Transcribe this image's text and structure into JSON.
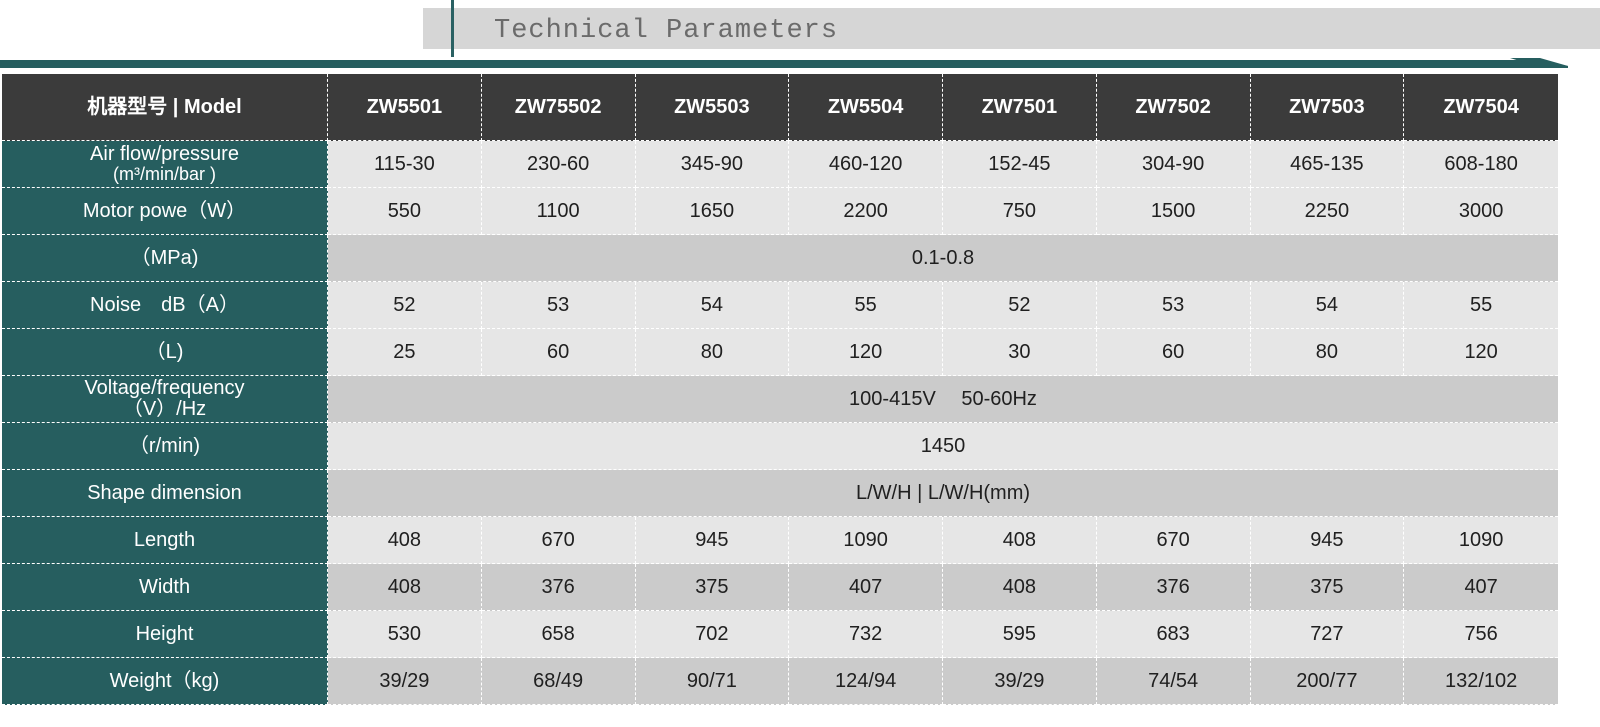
{
  "title": "Technical Parameters",
  "header": {
    "label": "机器型号 | Model",
    "models": [
      "ZW5501",
      "ZW75502",
      "ZW5503",
      "ZW5504",
      "ZW7501",
      "ZW7502",
      "ZW7503",
      "ZW7504"
    ]
  },
  "rows": [
    {
      "label": "Air flow/pressure",
      "label2": "(m³/min/bar )",
      "values": [
        "115-30",
        "230-60",
        "345-90",
        "460-120",
        "152-45",
        "304-90",
        "465-135",
        "608-180"
      ]
    },
    {
      "label": "Motor powe（W）",
      "values": [
        "550",
        "1100",
        "1650",
        "2200",
        "750",
        "1500",
        "2250",
        "3000"
      ]
    },
    {
      "label": "（MPa)",
      "span": "0.1-0.8"
    },
    {
      "label": "Noise　dB（A）",
      "values": [
        "52",
        "53",
        "54",
        "55",
        "52",
        "53",
        "54",
        "55"
      ]
    },
    {
      "label": "（L)",
      "values": [
        "25",
        "60",
        "80",
        "120",
        "30",
        "60",
        "80",
        "120"
      ]
    },
    {
      "label": "Voltage/frequency",
      "label2": "（V）/Hz",
      "span": "100-415V　 50-60Hz"
    },
    {
      "label": "（r/min)",
      "span": "1450"
    },
    {
      "label": "Shape dimension",
      "span": "L/W/H  |   L/W/H(mm)"
    },
    {
      "label": "Length",
      "values": [
        "408",
        "670",
        "945",
        "1090",
        "408",
        "670",
        "945",
        "1090"
      ]
    },
    {
      "label": "Width",
      "values": [
        "408",
        "376",
        "375",
        "407",
        "408",
        "376",
        "375",
        "407"
      ]
    },
    {
      "label": "Height",
      "values": [
        "530",
        "658",
        "702",
        "732",
        "595",
        "683",
        "727",
        "756"
      ]
    },
    {
      "label": "Weight（kg)",
      "values": [
        "39/29",
        "68/49",
        "90/71",
        "124/94",
        "39/29",
        "74/54",
        "200/77",
        "132/102"
      ]
    }
  ]
}
